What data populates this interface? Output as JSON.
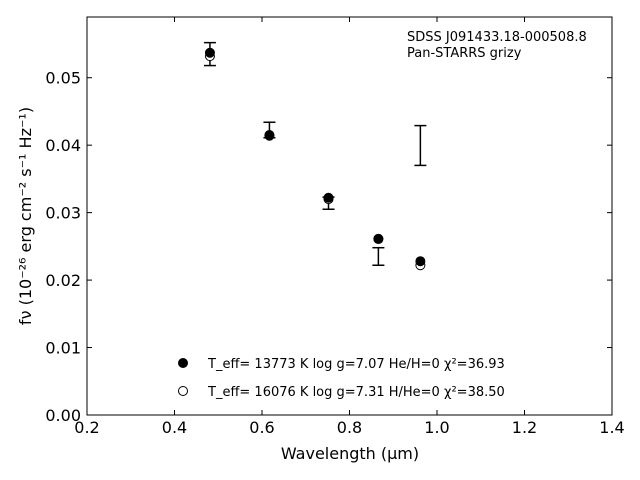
{
  "chart_data": {
    "type": "scatter",
    "title": "",
    "xlabel": "Wavelength (μm)",
    "ylabel": "fν (10⁻²⁶ erg cm⁻² s⁻¹ Hz⁻¹)",
    "xlim": [
      0.2,
      1.4
    ],
    "ylim": [
      0.0,
      0.059
    ],
    "x_ticks": [
      0.2,
      0.4,
      0.6,
      0.8,
      1.0,
      1.2,
      1.4
    ],
    "x_tick_labels": [
      "0.2",
      "0.4",
      "0.6",
      "0.8",
      "1.0",
      "1.2",
      "1.4"
    ],
    "y_ticks": [
      0.0,
      0.01,
      0.02,
      0.03,
      0.04,
      0.05
    ],
    "y_tick_labels": [
      "0.00",
      "0.01",
      "0.02",
      "0.03",
      "0.04",
      "0.05"
    ],
    "grid": false,
    "annotations": [
      "SDSS J091433.18-000508.8",
      "Pan-STARRS grizy"
    ],
    "observed": {
      "x": [
        0.481,
        0.617,
        0.752,
        0.866,
        0.962
      ],
      "y": [
        0.0535,
        0.0422,
        0.0313,
        0.0235,
        0.0399
      ],
      "yerr_low": [
        0.0017,
        0.0011,
        0.0008,
        0.0013,
        0.0029
      ],
      "yerr_high": [
        0.0017,
        0.0012,
        0.001,
        0.0013,
        0.003
      ]
    },
    "series": [
      {
        "marker": "filled",
        "x": [
          0.481,
          0.617,
          0.752,
          0.866,
          0.962
        ],
        "y": [
          0.0537,
          0.0415,
          0.0322,
          0.0261,
          0.0228
        ]
      },
      {
        "marker": "open",
        "x": [
          0.481,
          0.617,
          0.752,
          0.866,
          0.962
        ],
        "y": [
          0.0532,
          0.0414,
          0.032,
          0.0261,
          0.0222
        ]
      }
    ],
    "legend": {
      "placement": "lower-center",
      "entries": [
        {
          "marker": "filled",
          "label": "T_eff= 13773 K  log g=7.07  He/H=0  χ²=36.93"
        },
        {
          "marker": "open",
          "label": "T_eff= 16076 K  log g=7.31  H/He=0  χ²=38.50"
        }
      ]
    }
  }
}
